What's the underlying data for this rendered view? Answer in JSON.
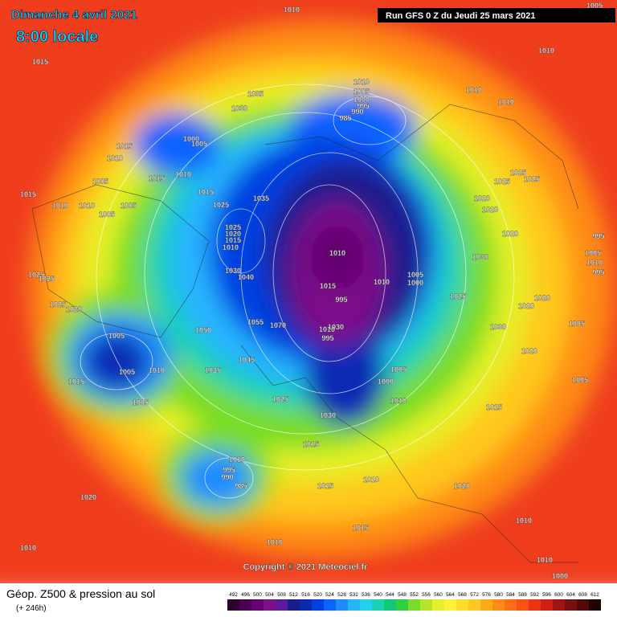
{
  "header": {
    "date": "Dimanche 4 avril 2021",
    "time": "8:00 locale",
    "run": "Run GFS 0 Z du Jeudi 25 mars 2021"
  },
  "footer": {
    "title": "Géop. Z500 & pression au sol",
    "subtitle": "(+ 246h)",
    "copyright": "Copyright © 2021 Meteociel.fr"
  },
  "colorbar": {
    "levels": [
      492,
      496,
      500,
      504,
      508,
      512,
      516,
      520,
      524,
      528,
      532,
      536,
      540,
      544,
      548,
      552,
      556,
      560,
      564,
      568,
      572,
      576,
      580,
      584,
      588,
      592,
      596,
      600,
      604,
      608,
      612
    ],
    "colors": [
      "#300030",
      "#4b0054",
      "#640070",
      "#7d108a",
      "#5a1a9a",
      "#1c1c8c",
      "#0a2ab4",
      "#0040e0",
      "#0a64ff",
      "#1e8cff",
      "#28b4ff",
      "#20d2f0",
      "#18d2b4",
      "#10c878",
      "#30d040",
      "#78dc28",
      "#b4e628",
      "#e6f028",
      "#fff03c",
      "#ffdc28",
      "#ffc81e",
      "#ffaa14",
      "#ff8c14",
      "#ff6e14",
      "#ff5014",
      "#f03214",
      "#d21e14",
      "#a01414",
      "#781010",
      "#500a0a",
      "#200404"
    ]
  },
  "isobar_labels": [
    "1010",
    "1005",
    "1015",
    "1010",
    "1035",
    "1030",
    "1010",
    "1005",
    "1000",
    "995",
    "990",
    "985",
    "1010",
    "1010",
    "1015",
    "1010",
    "1000",
    "1005",
    "1010",
    "1015",
    "1015",
    "1005",
    "1010",
    "1010",
    "1005",
    "1005",
    "1015",
    "1025",
    "1035",
    "1025",
    "1020",
    "1015",
    "1010",
    "1010",
    "1030",
    "1040",
    "1015",
    "1010",
    "1005",
    "1000",
    "995",
    "1020",
    "1025",
    "1025",
    "1025",
    "1020",
    "1020",
    "1030",
    "1025",
    "1020",
    "1020",
    "1025",
    "1025",
    "1025",
    "1020",
    "1050",
    "1055",
    "1070",
    "1005",
    "1005",
    "1010",
    "1015",
    "1005",
    "1035",
    "1045",
    "1010",
    "1030",
    "995",
    "1005",
    "1000",
    "1010",
    "1030",
    "1025",
    "1015",
    "1010",
    "995",
    "990",
    "985",
    "1015",
    "1010",
    "1015",
    "1020",
    "1010",
    "1005",
    "1005",
    "1005",
    "1010",
    "995",
    "1030",
    "1020",
    "1020",
    "1010",
    "1015",
    "1010",
    "1010",
    "1000",
    "995"
  ]
}
